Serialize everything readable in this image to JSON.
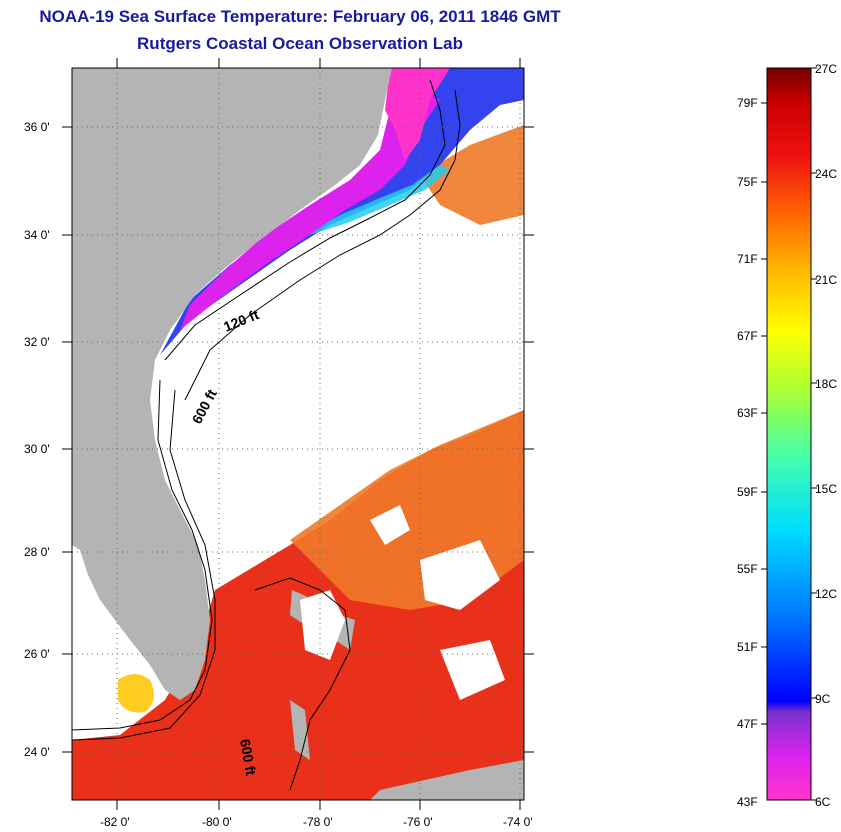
{
  "title": {
    "line1": "NOAA-19 Sea Surface Temperature:  February 06, 2011 1846 GMT",
    "line2": "Rutgers Coastal Ocean Observation Lab"
  },
  "map": {
    "lat_labels": [
      "36 0'",
      "34 0'",
      "32 0'",
      "30 0'",
      "28 0'",
      "26 0'",
      "24 0'"
    ],
    "lon_labels": [
      "-82 0'",
      "-80 0'",
      "-78 0'",
      "-76 0'",
      "-74 0'"
    ],
    "contour_labels": [
      "120 ft",
      "600 ft",
      "600 ft"
    ],
    "colors": {
      "land": "#b4b4b4",
      "cloud": "#ffffff",
      "warm_gulf_stream": "#e8301a",
      "shelf_cold": "#3344ee"
    }
  },
  "colorbar": {
    "fahrenheit": [
      "79F",
      "75F",
      "71F",
      "67F",
      "63F",
      "59F",
      "55F",
      "51F",
      "47F",
      "43F"
    ],
    "celsius": [
      "27C",
      "24C",
      "21C",
      "18C",
      "15C",
      "12C",
      "9C",
      "6C"
    ]
  }
}
